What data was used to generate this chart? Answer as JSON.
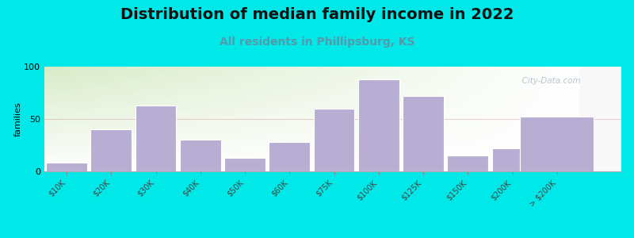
{
  "title": "Distribution of median family income in 2022",
  "subtitle": "All residents in Phillipsburg, KS",
  "categories": [
    "$10K",
    "$20K",
    "$30K",
    "$40K",
    "$50K",
    "$60K",
    "$75K",
    "$100K",
    "$125K",
    "$150K",
    "$200K",
    "> $200K"
  ],
  "values": [
    8,
    40,
    63,
    30,
    13,
    28,
    60,
    88,
    72,
    15,
    22,
    52
  ],
  "bar_color": "#b8aed4",
  "bar_edgecolor": "#ffffff",
  "ylabel": "families",
  "ylim": [
    0,
    100
  ],
  "yticks": [
    0,
    50,
    100
  ],
  "background_outer": "#00e8e8",
  "title_fontsize": 14,
  "subtitle_fontsize": 10,
  "subtitle_color": "#5599aa",
  "watermark_text": "  City-Data.com",
  "watermark_color": "#aabbcc"
}
